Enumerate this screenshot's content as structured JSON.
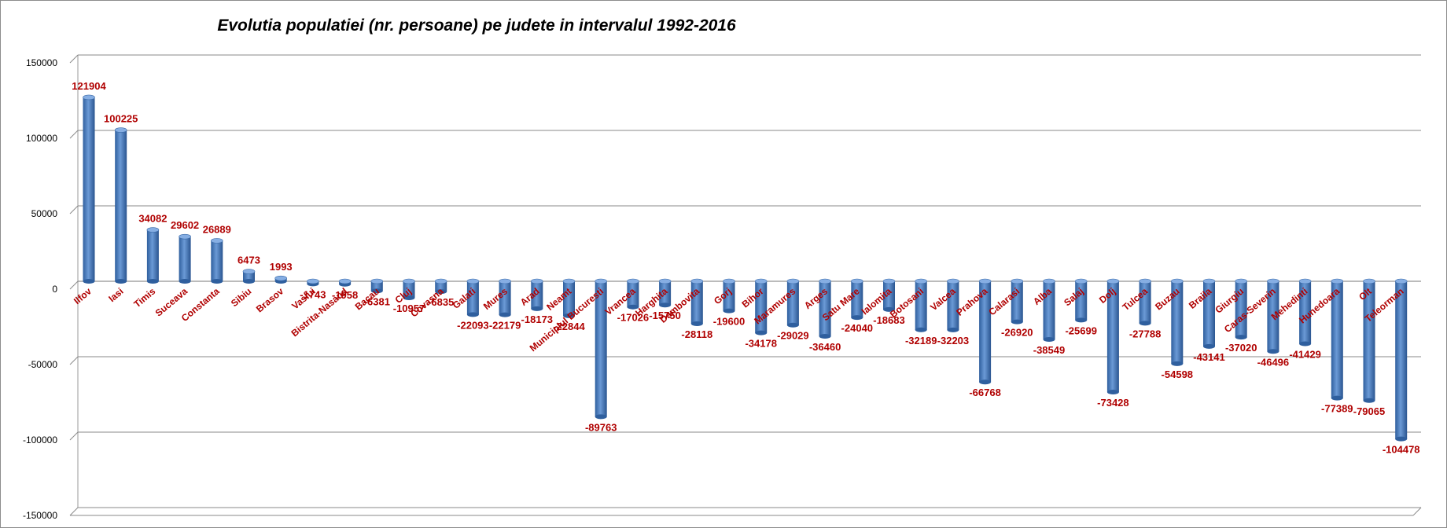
{
  "chart_data": {
    "type": "bar",
    "title": "Evolutia populatiei (nr. persoane) pe judete in intervalul 1992-2016",
    "xlabel": "",
    "ylabel": "",
    "ylim": [
      -150000,
      150000
    ],
    "yticks": [
      150000,
      100000,
      50000,
      0,
      -50000,
      -100000,
      -150000
    ],
    "grid": true,
    "legend": "none",
    "bar_color": "#4a7fc1",
    "label_color": "#b00000",
    "categories": [
      "Ilfov",
      "Iasi",
      "Timis",
      "Suceava",
      "Constanta",
      "Sibiu",
      "Brasov",
      "Vaslui",
      "Bistrita-Nasaud",
      "Bacau",
      "Cluj",
      "Covasna",
      "Galati",
      "Mures",
      "Arad",
      "Neamt",
      "Municipiul Bucuresti",
      "Vrancea",
      "Harghita",
      "Dambovita",
      "Gorj",
      "Bihor",
      "Maramures",
      "Arges",
      "Satu Mare",
      "Ialomita",
      "Botosani",
      "Valcea",
      "Prahova",
      "Calarasi",
      "Alba",
      "Salaj",
      "Dolj",
      "Tulcea",
      "Buzau",
      "Braila",
      "Giurgiu",
      "Caras-Severin",
      "Mehedinti",
      "Hunedoara",
      "Olt",
      "Teleorman"
    ],
    "values": [
      121904,
      100225,
      34082,
      29602,
      26889,
      6473,
      1993,
      -1743,
      -1958,
      -6381,
      -10957,
      -6835,
      -22093,
      -22179,
      -18173,
      -22844,
      -89763,
      -17026,
      -15750,
      -28118,
      -19600,
      -34178,
      -29029,
      -36460,
      -24040,
      -18683,
      -32189,
      -32203,
      -66768,
      -26920,
      -38549,
      -25699,
      -73428,
      -27788,
      -54598,
      -43141,
      -37020,
      -46496,
      -41429,
      -77389,
      -79065,
      -104478
    ]
  }
}
